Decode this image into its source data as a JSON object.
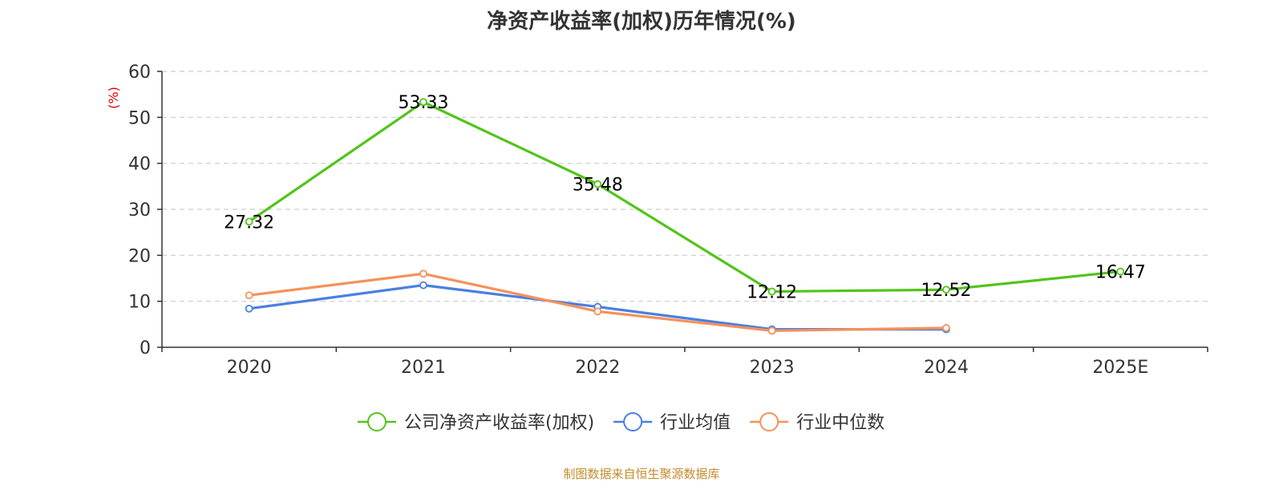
{
  "chart_data": {
    "type": "line",
    "title": "净资产收益率(加权)历年情况(%)",
    "ylabel": "(%)",
    "xlabel": "",
    "ylim": [
      0,
      60
    ],
    "yticks": [
      0,
      10,
      20,
      30,
      40,
      50,
      60
    ],
    "grid": true,
    "legend_position": "bottom-center",
    "categories": [
      "2020",
      "2021",
      "2022",
      "2023",
      "2024",
      "2025E"
    ],
    "series": [
      {
        "name": "公司净资产收益率(加权)",
        "color": "#52c41a",
        "values": [
          27.32,
          53.33,
          35.48,
          12.12,
          12.52,
          16.47
        ],
        "labels": [
          "27.32",
          "53.33",
          "35.48",
          "12.12",
          "12.52",
          "16.47"
        ],
        "show_labels": true
      },
      {
        "name": "行业均值",
        "color": "#4a7fe0",
        "values": [
          8.4,
          13.5,
          8.8,
          3.9,
          3.9,
          null
        ],
        "show_labels": false
      },
      {
        "name": "行业中位数",
        "color": "#f5915a",
        "values": [
          11.3,
          16.0,
          7.8,
          3.6,
          4.2,
          null
        ],
        "show_labels": false
      }
    ]
  },
  "footer": {
    "source": "制图数据来自恒生聚源数据库"
  },
  "colors": {
    "axis": "#333333",
    "grid": "#cccccc",
    "ylabel": "#e00000",
    "footer": "#c38b2e"
  }
}
